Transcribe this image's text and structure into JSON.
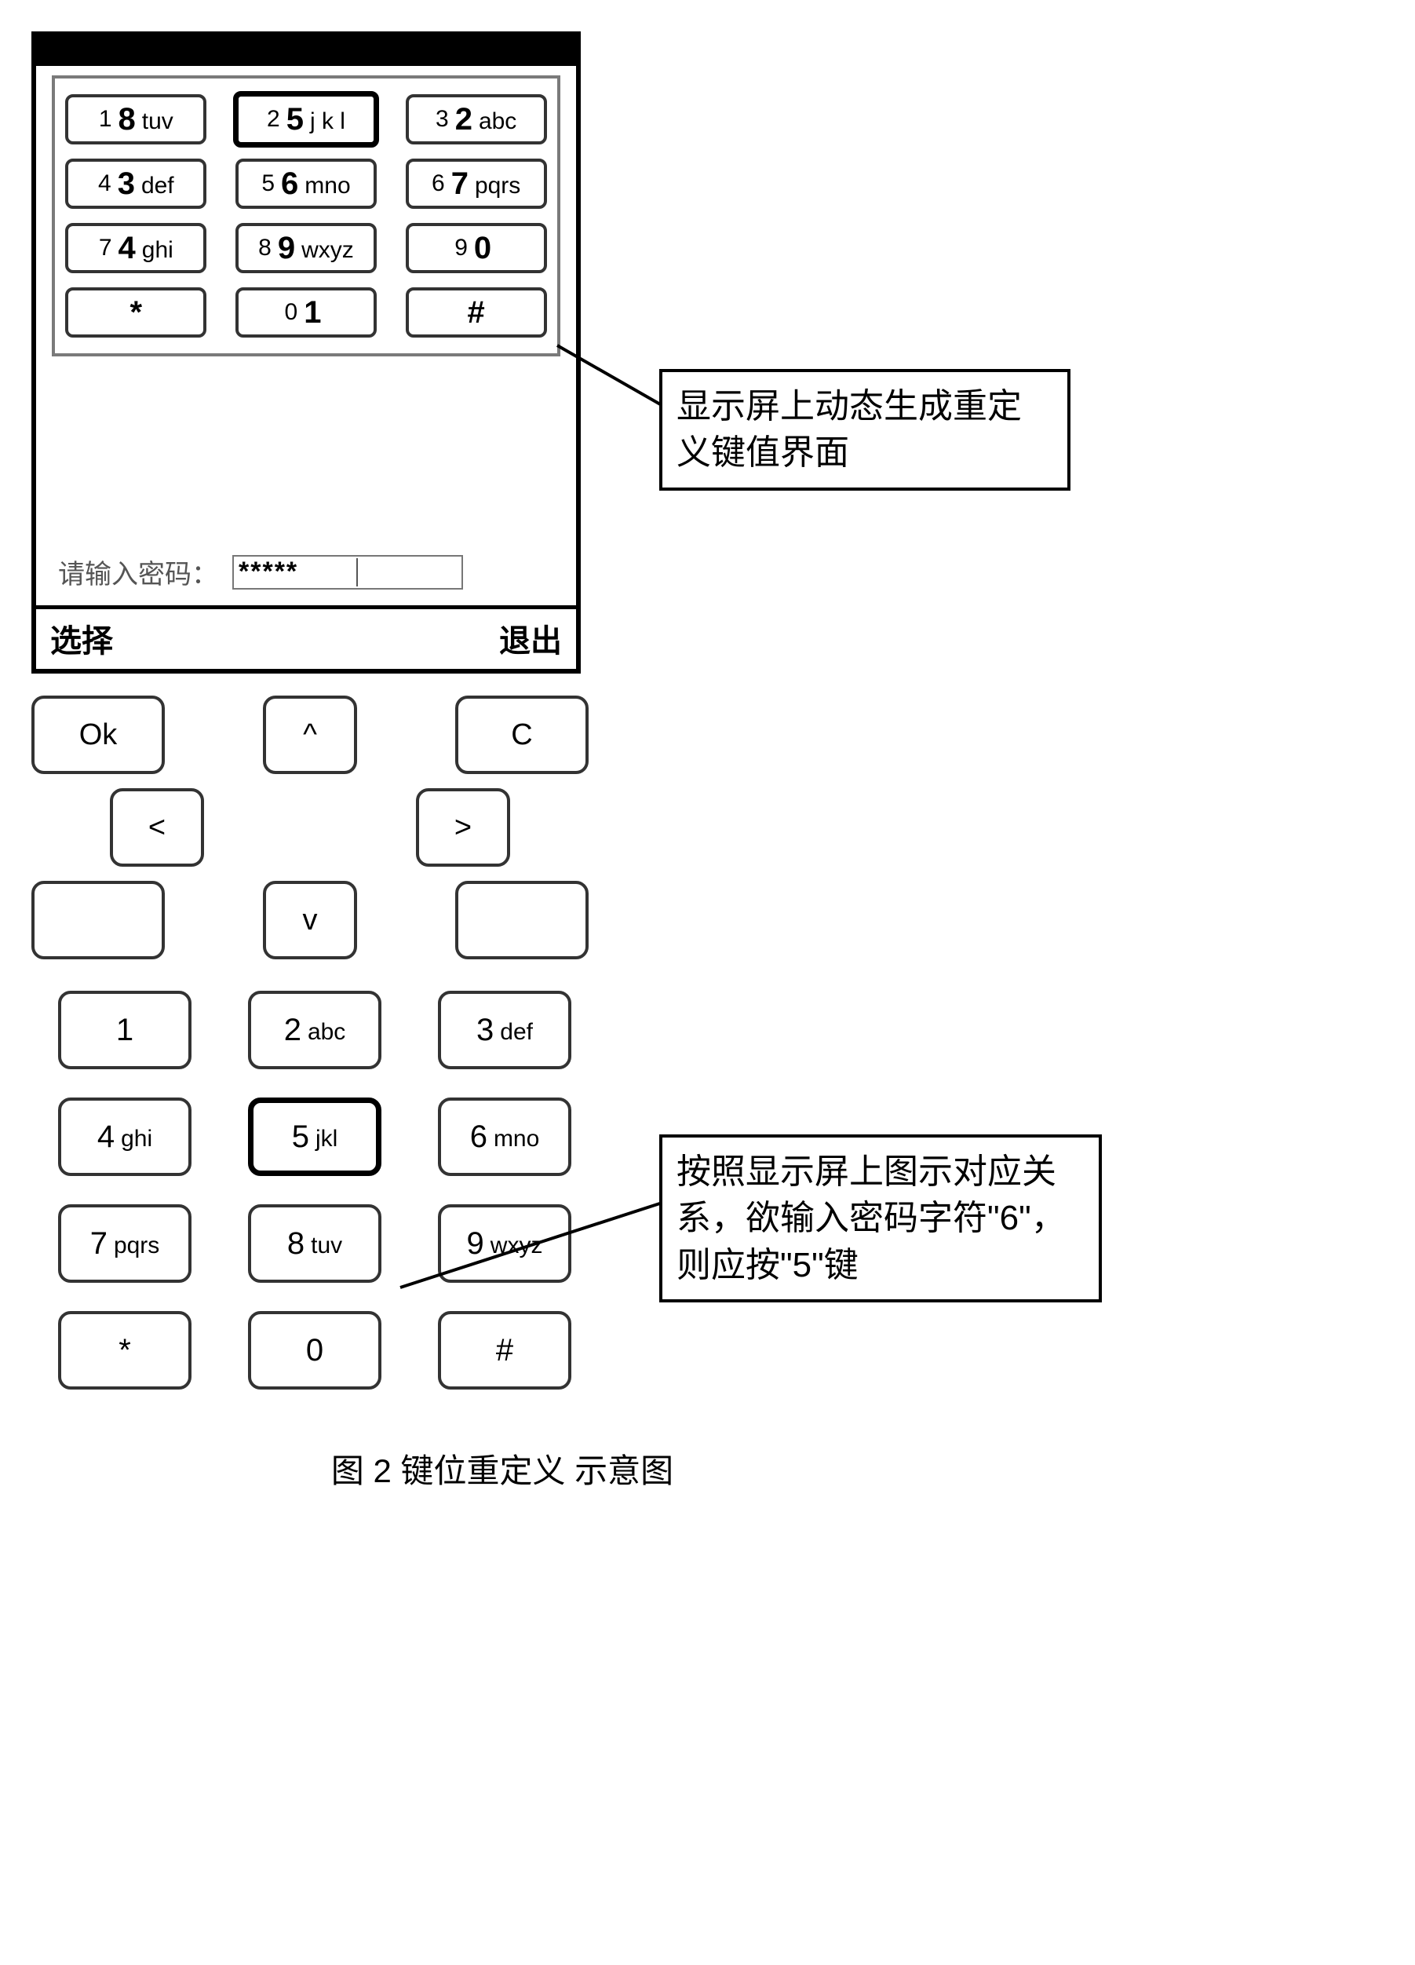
{
  "screen": {
    "virtual_keys": [
      {
        "phys": "1",
        "mapped": "8",
        "letters": "tuv",
        "selected": false
      },
      {
        "phys": "2",
        "mapped": "5",
        "letters": "j k l",
        "selected": true
      },
      {
        "phys": "3",
        "mapped": "2",
        "letters": "abc",
        "selected": false
      },
      {
        "phys": "4",
        "mapped": "3",
        "letters": "def",
        "selected": false
      },
      {
        "phys": "5",
        "mapped": "6",
        "letters": "mno",
        "selected": false
      },
      {
        "phys": "6",
        "mapped": "7",
        "letters": "pqrs",
        "selected": false
      },
      {
        "phys": "7",
        "mapped": "4",
        "letters": "ghi",
        "selected": false
      },
      {
        "phys": "8",
        "mapped": "9",
        "letters": "wxyz",
        "selected": false
      },
      {
        "phys": "9",
        "mapped": "0",
        "letters": "",
        "selected": false
      },
      {
        "phys": "*",
        "mapped": "",
        "letters": "",
        "selected": false
      },
      {
        "phys": "0",
        "mapped": "1",
        "letters": "",
        "selected": false
      },
      {
        "phys": "#",
        "mapped": "",
        "letters": "",
        "selected": false
      }
    ],
    "password_label": "请输入密码：",
    "password_value": "*****",
    "softkey_left": "选择",
    "softkey_right": "退出"
  },
  "physical": {
    "nav": {
      "ok": "Ok",
      "up": "^",
      "clear": "C",
      "left": "<",
      "right": ">",
      "down": "v"
    },
    "keys": [
      {
        "label": "1",
        "letters": "",
        "selected": false
      },
      {
        "label": "2",
        "letters": "abc",
        "selected": false
      },
      {
        "label": "3",
        "letters": "def",
        "selected": false
      },
      {
        "label": "4",
        "letters": "ghi",
        "selected": false
      },
      {
        "label": "5",
        "letters": "jkl",
        "selected": true
      },
      {
        "label": "6",
        "letters": "mno",
        "selected": false
      },
      {
        "label": "7",
        "letters": "pqrs",
        "selected": false
      },
      {
        "label": "8",
        "letters": "tuv",
        "selected": false
      },
      {
        "label": "9",
        "letters": "wxyz",
        "selected": false
      },
      {
        "label": "*",
        "letters": "",
        "selected": false
      },
      {
        "label": "0",
        "letters": "",
        "selected": false
      },
      {
        "label": "#",
        "letters": "",
        "selected": false
      }
    ]
  },
  "annotations": {
    "a1": "显示屏上动态生成重定义键值界面",
    "a2": "按照显示屏上图示对应关系，欲输入密码字符\"6\"，则应按\"5\"键"
  },
  "caption": "图 2 键位重定义 示意图",
  "colors": {
    "border": "#000000",
    "key_border": "#333333",
    "grid_border": "#7a7a7a",
    "text_muted": "#555555",
    "background": "#ffffff"
  }
}
